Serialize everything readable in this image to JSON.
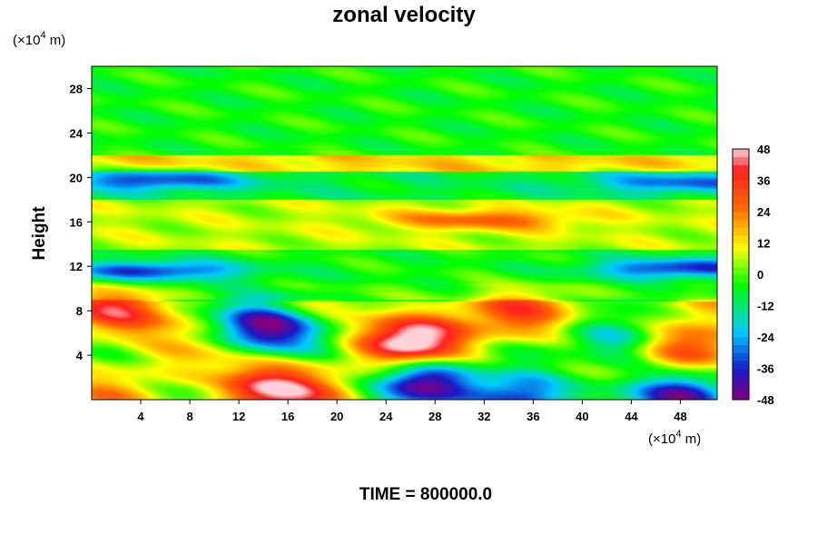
{
  "chart_data": {
    "type": "heatmap",
    "title": "zonal velocity",
    "ylabel": "Height",
    "x_unit": "(×10",
    "y_unit": "(×10",
    "unit_exponent": "4",
    "unit_suffix": " m)",
    "time_label": "TIME = 800000.0",
    "xlim": [
      0,
      51
    ],
    "ylim": [
      0,
      30
    ],
    "x_ticks": [
      4,
      8,
      12,
      16,
      20,
      24,
      28,
      32,
      36,
      40,
      44,
      48
    ],
    "y_ticks": [
      4,
      8,
      12,
      16,
      20,
      24,
      28
    ],
    "colorbar": {
      "range": [
        -48,
        48
      ],
      "ticks": [
        48,
        36,
        24,
        12,
        0,
        -12,
        -24,
        -36,
        -48
      ],
      "palette": [
        "#800080",
        "#1a1ac8",
        "#00c8ff",
        "#00ff00",
        "#ffff00",
        "#ff6600",
        "#ff2020",
        "#ffd0d8"
      ],
      "palette_stops": [
        -48,
        -36,
        -22,
        -4,
        10,
        26,
        40,
        48
      ]
    },
    "layers": [
      {
        "y": [
          0,
          8.8
        ],
        "base": 8,
        "note": "lower layer with strong jets"
      },
      {
        "y": [
          8.8,
          10.5
        ],
        "base": -2
      },
      {
        "y": [
          10.5,
          13.5
        ],
        "base": -4
      },
      {
        "y": [
          13.5,
          18
        ],
        "base": 6
      },
      {
        "y": [
          18,
          20.5
        ],
        "base": -8
      },
      {
        "y": [
          20.5,
          22
        ],
        "base": 14
      },
      {
        "y": [
          22,
          30
        ],
        "base": -4
      }
    ],
    "features": [
      {
        "x": 2,
        "y": 7.5,
        "value": 40
      },
      {
        "x": 13.5,
        "y": 6.5,
        "value": -48
      },
      {
        "x": 14,
        "y": 1,
        "value": 48
      },
      {
        "x": 26,
        "y": 5,
        "value": 48
      },
      {
        "x": 27,
        "y": 1.8,
        "value": -40
      },
      {
        "x": 35,
        "y": 7.2,
        "value": 36
      },
      {
        "x": 35,
        "y": 0.3,
        "value": -48
      },
      {
        "x": 43,
        "y": 5.5,
        "value": -32
      },
      {
        "x": 49.5,
        "y": 4.8,
        "value": 44
      },
      {
        "x": 49,
        "y": 0.3,
        "value": -48
      },
      {
        "x": 5,
        "y": 11.6,
        "value": -36
      },
      {
        "x": 48,
        "y": 11.8,
        "value": -36
      },
      {
        "x": 5,
        "y": 19.7,
        "value": -34
      },
      {
        "x": 48,
        "y": 19.5,
        "value": -30
      },
      {
        "x": 32,
        "y": 16.2,
        "value": 28
      }
    ]
  }
}
